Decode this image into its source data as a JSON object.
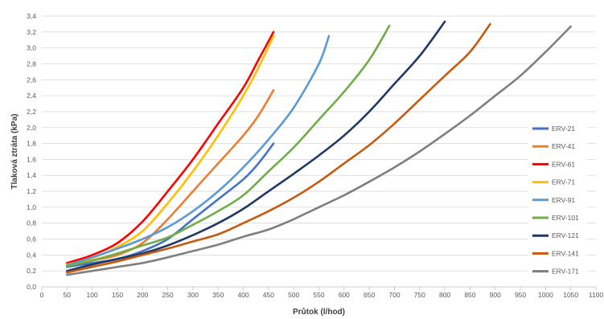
{
  "chart_data": {
    "type": "line",
    "title": "",
    "xlabel": "Průtok (l/hod)",
    "ylabel": "Tlaková ztráta (kPa)",
    "xlim": [
      0,
      1100
    ],
    "ylim": [
      0,
      3.4
    ],
    "x_ticks": [
      "0",
      "50",
      "100",
      "150",
      "200",
      "250",
      "300",
      "350",
      "400",
      "450",
      "500",
      "550",
      "600",
      "650",
      "700",
      "750",
      "800",
      "850",
      "900",
      "950",
      "1000",
      "1050",
      "1100"
    ],
    "y_ticks": [
      "0,0",
      "0,2",
      "0,4",
      "0,6",
      "0,8",
      "1,0",
      "1,2",
      "1,4",
      "1,6",
      "1,8",
      "2,0",
      "2,2",
      "2,4",
      "2,6",
      "2,8",
      "3,0",
      "3,2",
      "3,4"
    ],
    "grid": "horizontal",
    "legend_position": "right",
    "series": [
      {
        "name": "ERV-21",
        "color": "#4472c4",
        "points": [
          [
            50,
            0.25
          ],
          [
            100,
            0.3
          ],
          [
            150,
            0.35
          ],
          [
            200,
            0.45
          ],
          [
            250,
            0.6
          ],
          [
            300,
            0.85
          ],
          [
            350,
            1.1
          ],
          [
            400,
            1.35
          ],
          [
            430,
            1.55
          ],
          [
            460,
            1.8
          ]
        ]
      },
      {
        "name": "ERV-41",
        "color": "#ed7d31",
        "points": [
          [
            50,
            0.27
          ],
          [
            100,
            0.33
          ],
          [
            150,
            0.4
          ],
          [
            200,
            0.55
          ],
          [
            250,
            0.85
          ],
          [
            300,
            1.2
          ],
          [
            350,
            1.55
          ],
          [
            400,
            1.9
          ],
          [
            430,
            2.15
          ],
          [
            460,
            2.47
          ]
        ]
      },
      {
        "name": "ERV-61",
        "color": "#ff0000",
        "points": [
          [
            50,
            0.3
          ],
          [
            100,
            0.4
          ],
          [
            150,
            0.55
          ],
          [
            200,
            0.82
          ],
          [
            250,
            1.2
          ],
          [
            300,
            1.6
          ],
          [
            350,
            2.05
          ],
          [
            400,
            2.5
          ],
          [
            430,
            2.85
          ],
          [
            460,
            3.2
          ]
        ]
      },
      {
        "name": "ERV-71",
        "color": "#ffc000",
        "points": [
          [
            50,
            0.28
          ],
          [
            100,
            0.36
          ],
          [
            150,
            0.5
          ],
          [
            200,
            0.7
          ],
          [
            250,
            1.05
          ],
          [
            300,
            1.45
          ],
          [
            350,
            1.9
          ],
          [
            400,
            2.4
          ],
          [
            430,
            2.75
          ],
          [
            460,
            3.15
          ]
        ]
      },
      {
        "name": "ERV-91",
        "color": "#5b9bd5",
        "points": [
          [
            50,
            0.27
          ],
          [
            100,
            0.37
          ],
          [
            150,
            0.48
          ],
          [
            200,
            0.6
          ],
          [
            250,
            0.75
          ],
          [
            300,
            0.95
          ],
          [
            350,
            1.2
          ],
          [
            400,
            1.5
          ],
          [
            450,
            1.85
          ],
          [
            500,
            2.25
          ],
          [
            550,
            2.8
          ],
          [
            570,
            3.15
          ]
        ]
      },
      {
        "name": "ERV-101",
        "color": "#70ad47",
        "points": [
          [
            50,
            0.26
          ],
          [
            100,
            0.33
          ],
          [
            150,
            0.42
          ],
          [
            200,
            0.52
          ],
          [
            250,
            0.62
          ],
          [
            300,
            0.78
          ],
          [
            350,
            0.95
          ],
          [
            400,
            1.15
          ],
          [
            450,
            1.45
          ],
          [
            500,
            1.75
          ],
          [
            550,
            2.1
          ],
          [
            600,
            2.45
          ],
          [
            650,
            2.85
          ],
          [
            690,
            3.28
          ]
        ]
      },
      {
        "name": "ERV-121",
        "color": "#1f3864",
        "points": [
          [
            50,
            0.2
          ],
          [
            100,
            0.28
          ],
          [
            150,
            0.35
          ],
          [
            200,
            0.42
          ],
          [
            250,
            0.52
          ],
          [
            300,
            0.65
          ],
          [
            350,
            0.8
          ],
          [
            400,
            0.98
          ],
          [
            450,
            1.2
          ],
          [
            500,
            1.42
          ],
          [
            550,
            1.65
          ],
          [
            600,
            1.9
          ],
          [
            650,
            2.2
          ],
          [
            700,
            2.55
          ],
          [
            750,
            2.9
          ],
          [
            800,
            3.33
          ]
        ]
      },
      {
        "name": "ERV-141",
        "color": "#c55a11",
        "points": [
          [
            50,
            0.18
          ],
          [
            100,
            0.25
          ],
          [
            150,
            0.32
          ],
          [
            200,
            0.4
          ],
          [
            250,
            0.48
          ],
          [
            300,
            0.57
          ],
          [
            350,
            0.66
          ],
          [
            400,
            0.8
          ],
          [
            450,
            0.95
          ],
          [
            500,
            1.12
          ],
          [
            550,
            1.32
          ],
          [
            600,
            1.55
          ],
          [
            650,
            1.78
          ],
          [
            700,
            2.05
          ],
          [
            750,
            2.35
          ],
          [
            800,
            2.65
          ],
          [
            850,
            2.95
          ],
          [
            890,
            3.3
          ]
        ]
      },
      {
        "name": "ERV-171",
        "color": "#7f7f7f",
        "points": [
          [
            50,
            0.15
          ],
          [
            100,
            0.2
          ],
          [
            150,
            0.25
          ],
          [
            200,
            0.3
          ],
          [
            250,
            0.37
          ],
          [
            300,
            0.45
          ],
          [
            350,
            0.53
          ],
          [
            400,
            0.63
          ],
          [
            450,
            0.72
          ],
          [
            500,
            0.85
          ],
          [
            550,
            1.0
          ],
          [
            600,
            1.15
          ],
          [
            650,
            1.32
          ],
          [
            700,
            1.5
          ],
          [
            750,
            1.7
          ],
          [
            800,
            1.92
          ],
          [
            850,
            2.15
          ],
          [
            900,
            2.4
          ],
          [
            950,
            2.65
          ],
          [
            1000,
            2.95
          ],
          [
            1050,
            3.27
          ]
        ]
      }
    ]
  }
}
